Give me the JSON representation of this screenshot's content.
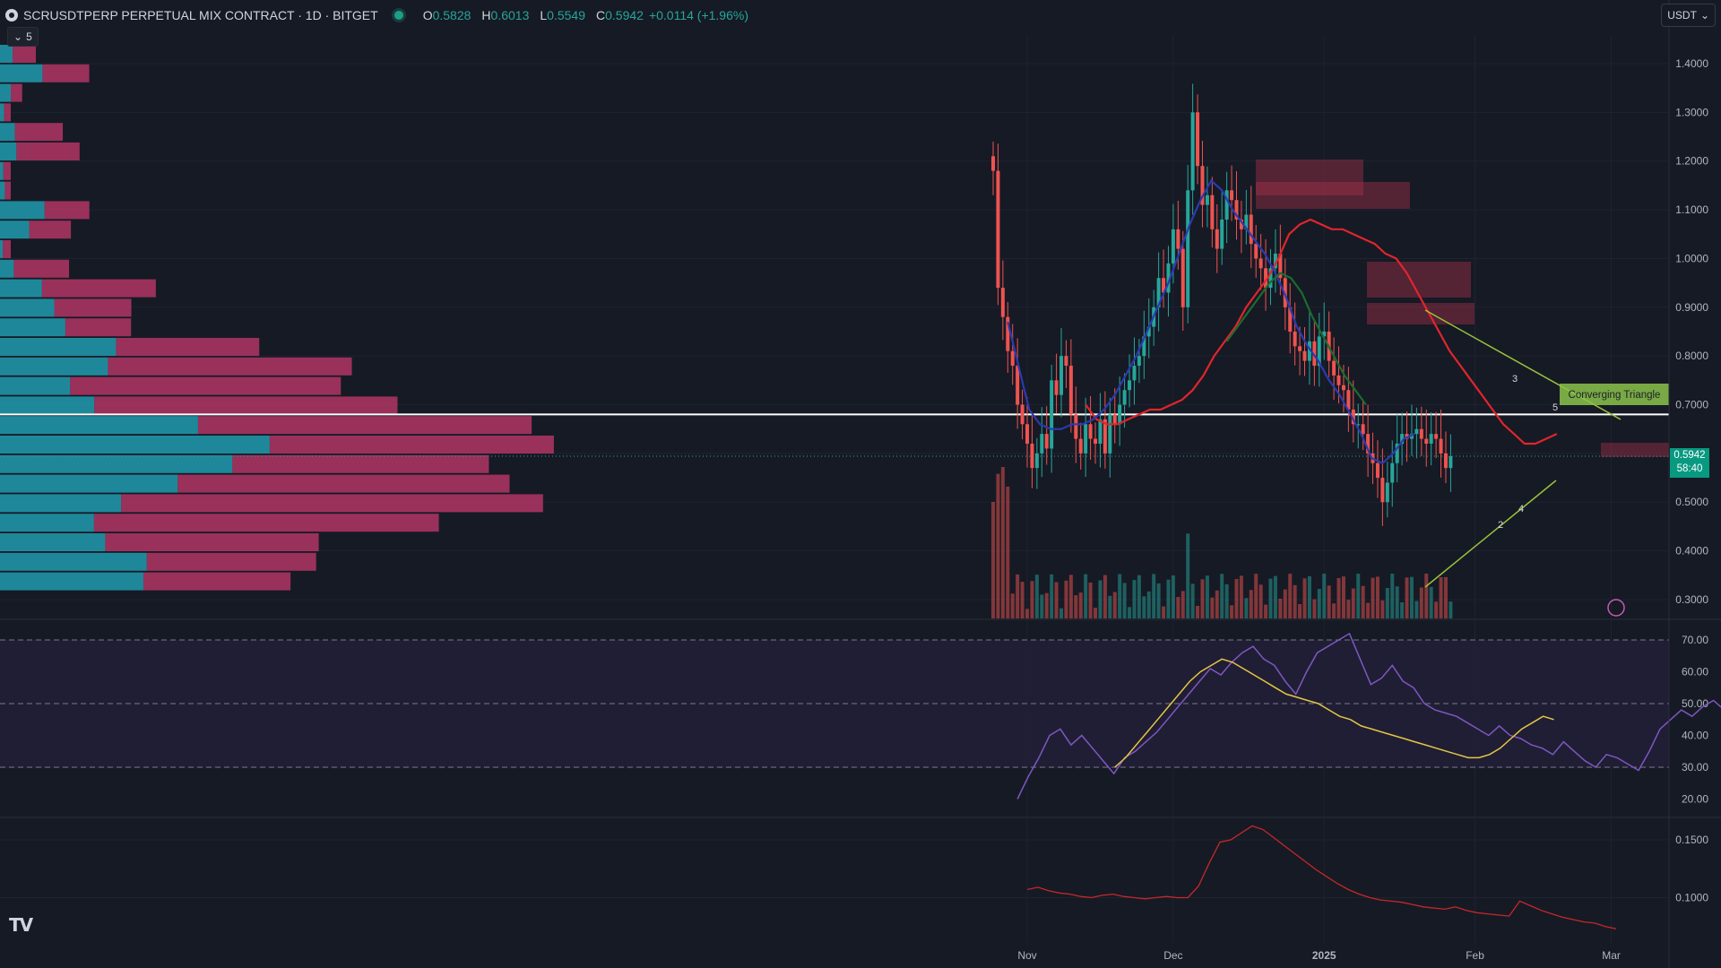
{
  "header": {
    "symbol": "SCRUSDTPERP PERPETUAL MIX CONTRACT · 1D · BITGET",
    "open_label": "O",
    "open": "0.5828",
    "high_label": "H",
    "high": "0.6013",
    "low_label": "L",
    "low": "0.5549",
    "close_label": "C",
    "close": "0.5942",
    "change": "+0.0114 (+1.96%)"
  },
  "collapse_count": "5",
  "currency": "USDT",
  "last_price": "0.5942",
  "countdown": "58:40",
  "pattern_label": "Converging Triangle",
  "wave_labels": [
    "3",
    "5",
    "2",
    "4"
  ],
  "icons": [
    "logo-icon",
    "chevron-down-icon",
    "lightning-icon",
    "tradingview-logo-icon"
  ],
  "colors": {
    "bg": "#161a25",
    "up": "#26a69a",
    "down": "#ef5350",
    "rsi": "#7e57c2",
    "rsi_ma": "#e5c645",
    "ema_red": "#e0252c",
    "ma_blue": "#2c3aaf",
    "ma_green": "#1d6b2e",
    "pattern": "#9bc43a",
    "volprofile_up": "#20a4b8",
    "volprofile_down": "#c53a6d"
  },
  "chart_data": [
    {
      "type": "candlestick",
      "title": "SCRUSDTPERP PERPETUAL MIX CONTRACT · 1D · BITGET",
      "x_ticks": [
        "Nov",
        "Dec",
        "2025",
        "Feb",
        "Mar"
      ],
      "y_ticks": [
        "1.4000",
        "1.3000",
        "1.2000",
        "1.1000",
        "1.0000",
        "0.9000",
        "0.8000",
        "0.7000",
        "0.6000",
        "0.5000",
        "0.4000",
        "0.3000"
      ],
      "ylim": [
        0.27,
        1.47
      ],
      "x_start": "2024-10-22",
      "x_end": "2025-02-27",
      "closes": [
        1.18,
        0.94,
        0.88,
        0.81,
        0.78,
        0.7,
        0.66,
        0.62,
        0.57,
        0.6,
        0.64,
        0.61,
        0.75,
        0.72,
        0.8,
        0.78,
        0.68,
        0.63,
        0.6,
        0.66,
        0.63,
        0.62,
        0.67,
        0.6,
        0.68,
        0.66,
        0.7,
        0.73,
        0.75,
        0.78,
        0.8,
        0.84,
        0.86,
        0.9,
        0.96,
        0.93,
        0.99,
        1.06,
        1.02,
        0.9,
        1.14,
        1.3,
        1.19,
        1.11,
        1.13,
        1.06,
        1.02,
        1.08,
        1.14,
        1.12,
        1.08,
        1.06,
        1.09,
        1.03,
        1.0,
        0.98,
        0.94,
        0.98,
        1.01,
        0.96,
        0.9,
        0.85,
        0.82,
        0.81,
        0.79,
        0.83,
        0.78,
        0.84,
        0.85,
        0.79,
        0.76,
        0.74,
        0.73,
        0.69,
        0.66,
        0.66,
        0.64,
        0.6,
        0.58,
        0.55,
        0.5,
        0.54,
        0.58,
        0.62,
        0.64,
        0.63,
        0.64,
        0.65,
        0.63,
        0.62,
        0.64,
        0.63,
        0.6,
        0.57,
        0.5942
      ],
      "last_price": 0.5942,
      "poc_price": 0.68,
      "ema_red": {
        "start": "2024-11-13",
        "values": [
          0.7,
          0.67,
          0.66,
          0.66,
          0.67,
          0.68,
          0.69,
          0.69,
          0.7,
          0.71,
          0.73,
          0.76,
          0.8,
          0.83,
          0.86,
          0.9,
          0.93,
          0.96,
          1.0,
          1.05,
          1.07,
          1.08,
          1.07,
          1.06,
          1.06,
          1.05,
          1.04,
          1.03,
          1.01,
          1.0,
          0.97,
          0.93,
          0.89,
          0.85,
          0.81,
          0.78,
          0.75,
          0.72,
          0.69,
          0.66,
          0.64,
          0.62,
          0.62,
          0.63,
          0.64
        ]
      },
      "ma_blue": {
        "start": "2024-10-28",
        "values": [
          0.87,
          0.78,
          0.69,
          0.66,
          0.65,
          0.65,
          0.66,
          0.66,
          0.67,
          0.69,
          0.72,
          0.76,
          0.8,
          0.85,
          0.9,
          0.95,
          1.01,
          1.07,
          1.12,
          1.16,
          1.14,
          1.1,
          1.07,
          1.04,
          1.01,
          0.97,
          0.92,
          0.86,
          0.82,
          0.79,
          0.75,
          0.72,
          0.68,
          0.64,
          0.59,
          0.58,
          0.6,
          0.63,
          0.64
        ]
      },
      "ma_green": {
        "start": "2024-12-12",
        "values": [
          0.83,
          0.86,
          0.89,
          0.92,
          0.95,
          0.97,
          0.96,
          0.93,
          0.88,
          0.84,
          0.8,
          0.76,
          0.73,
          0.7
        ]
      },
      "pattern": {
        "name": "Converging Triangle",
        "wave_points": [
          {
            "label": "3",
            "date": "2025-02-06",
            "price": 0.73
          },
          {
            "label": "5",
            "date": "2025-02-14",
            "price": 0.68
          },
          {
            "label": "2",
            "date": "2025-02-02",
            "price": 0.45
          },
          {
            "label": "4",
            "date": "2025-02-06",
            "price": 0.49
          }
        ]
      }
    },
    {
      "type": "line",
      "title": "",
      "y_ticks": [
        "70.00",
        "60.00",
        "50.00",
        "40.00",
        "30.00",
        "20.00"
      ],
      "ylim": [
        16,
        75
      ],
      "bands": [
        30,
        50,
        70
      ],
      "series": [
        {
          "start": "2024-10-30",
          "values": [
            20,
            27,
            33,
            40,
            42,
            37,
            40,
            36,
            32,
            28,
            33,
            35,
            38,
            41,
            45,
            49,
            53,
            57,
            61,
            59,
            63,
            66,
            68,
            64,
            62,
            57,
            53,
            60,
            66,
            68,
            70,
            72,
            64,
            56,
            58,
            62,
            57,
            55,
            50,
            48,
            47,
            46,
            44,
            42,
            40,
            43,
            40,
            39,
            37,
            36,
            34,
            38,
            35,
            32,
            30,
            34,
            33,
            31,
            29,
            35,
            42,
            45,
            48,
            46,
            49,
            51,
            48,
            45
          ]
        },
        {
          "start": "2024-11-19",
          "values": [
            30,
            33,
            37,
            41,
            45,
            49,
            53,
            57,
            60,
            62,
            64,
            63,
            61,
            59,
            57,
            55,
            53,
            52,
            51,
            50,
            48,
            46,
            45,
            43,
            42,
            41,
            40,
            39,
            38,
            37,
            36,
            35,
            34,
            33,
            33,
            34,
            36,
            39,
            42,
            44,
            46,
            45
          ]
        }
      ]
    },
    {
      "type": "line",
      "title": "",
      "y_ticks": [
        "0.1500",
        "0.1000"
      ],
      "ylim": [
        0.07,
        0.17
      ],
      "series": [
        {
          "start": "2024-11-01",
          "values": [
            0.107,
            0.109,
            0.106,
            0.104,
            0.103,
            0.101,
            0.1,
            0.102,
            0.103,
            0.101,
            0.1,
            0.099,
            0.1,
            0.101,
            0.1,
            0.1,
            0.11,
            0.13,
            0.148,
            0.15,
            0.156,
            0.162,
            0.159,
            0.152,
            0.145,
            0.138,
            0.131,
            0.124,
            0.118,
            0.112,
            0.107,
            0.103,
            0.1,
            0.098,
            0.097,
            0.096,
            0.094,
            0.092,
            0.091,
            0.09,
            0.092,
            0.089,
            0.087,
            0.086,
            0.085,
            0.084,
            0.097,
            0.093,
            0.089,
            0.086,
            0.083,
            0.081,
            0.079,
            0.078,
            0.075,
            0.073
          ]
        }
      ]
    }
  ]
}
